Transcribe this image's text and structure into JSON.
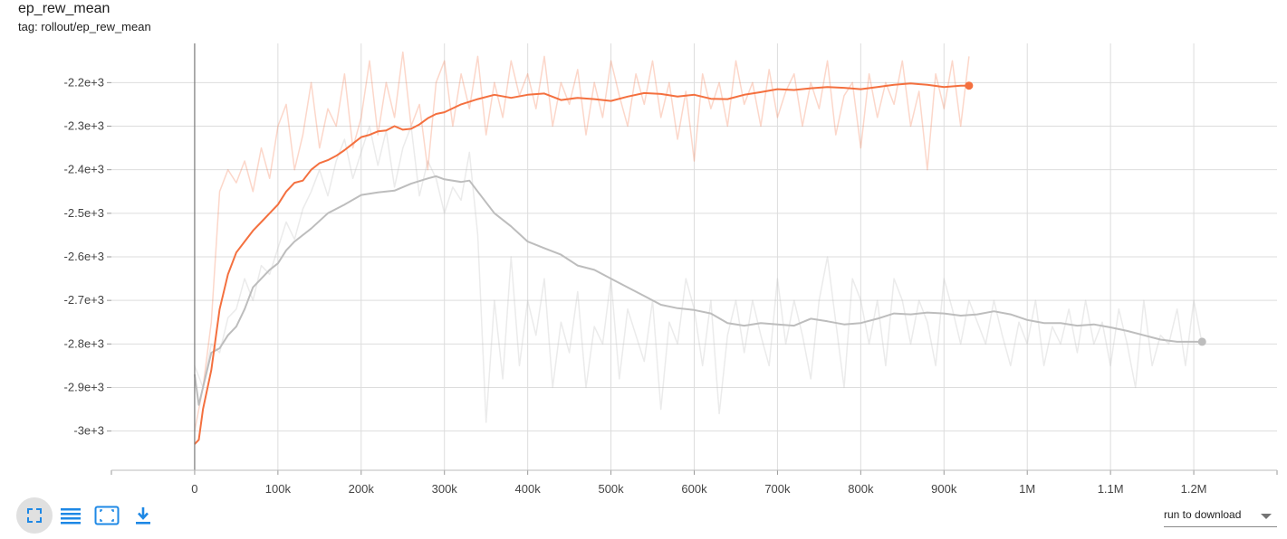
{
  "card": {
    "title": "ep_rew_mean",
    "tag": "tag: rollout/ep_rew_mean"
  },
  "toolbar": {
    "buttons": [
      "fullscreen-icon",
      "list-icon",
      "fit-domain-icon",
      "download-icon"
    ],
    "download_label": "run to download"
  },
  "colors": {
    "orange": "#f4703f",
    "gray": "#bdbdbd"
  },
  "chart_data": {
    "type": "line",
    "title": "ep_rew_mean",
    "xlabel": "",
    "ylabel": "",
    "xlim": [
      -100000,
      1300000
    ],
    "ylim": [
      -3090,
      -2110
    ],
    "grid": true,
    "x_ticks": [
      0,
      100000,
      200000,
      300000,
      400000,
      500000,
      600000,
      700000,
      800000,
      900000,
      1000000,
      1100000,
      1200000
    ],
    "x_tick_labels": [
      "0",
      "100k",
      "200k",
      "300k",
      "400k",
      "500k",
      "600k",
      "700k",
      "800k",
      "900k",
      "1M",
      "1.1M",
      "1.2M"
    ],
    "y_ticks": [
      -3000,
      -2900,
      -2800,
      -2700,
      -2600,
      -2500,
      -2400,
      -2300,
      -2200
    ],
    "y_tick_labels": [
      "-3e+3",
      "-2.9e+3",
      "-2.8e+3",
      "-2.7e+3",
      "-2.6e+3",
      "-2.5e+3",
      "-2.4e+3",
      "-2.3e+3",
      "-2.2e+3"
    ],
    "series": [
      {
        "color": "#bdbdbd",
        "end_marker": true,
        "smoothed": {
          "x": [
            0,
            5000,
            10000,
            20000,
            30000,
            40000,
            50000,
            60000,
            70000,
            80000,
            90000,
            100000,
            110000,
            120000,
            140000,
            160000,
            180000,
            200000,
            220000,
            240000,
            260000,
            280000,
            290000,
            300000,
            320000,
            330000,
            340000,
            360000,
            380000,
            400000,
            420000,
            440000,
            460000,
            480000,
            500000,
            520000,
            540000,
            560000,
            580000,
            600000,
            620000,
            640000,
            660000,
            680000,
            700000,
            720000,
            740000,
            760000,
            780000,
            800000,
            820000,
            840000,
            860000,
            880000,
            900000,
            920000,
            940000,
            960000,
            980000,
            1000000,
            1020000,
            1040000,
            1060000,
            1080000,
            1100000,
            1120000,
            1140000,
            1160000,
            1180000,
            1210000
          ],
          "y": [
            -2870,
            -2940,
            -2900,
            -2820,
            -2810,
            -2780,
            -2760,
            -2720,
            -2670,
            -2650,
            -2630,
            -2615,
            -2585,
            -2565,
            -2535,
            -2500,
            -2480,
            -2458,
            -2452,
            -2448,
            -2432,
            -2420,
            -2415,
            -2422,
            -2428,
            -2425,
            -2450,
            -2500,
            -2530,
            -2565,
            -2580,
            -2595,
            -2620,
            -2630,
            -2650,
            -2670,
            -2690,
            -2710,
            -2718,
            -2722,
            -2730,
            -2752,
            -2758,
            -2752,
            -2755,
            -2758,
            -2742,
            -2748,
            -2755,
            -2752,
            -2742,
            -2730,
            -2732,
            -2728,
            -2730,
            -2735,
            -2732,
            -2725,
            -2732,
            -2745,
            -2752,
            -2752,
            -2758,
            -2755,
            -2762,
            -2770,
            -2780,
            -2790,
            -2795,
            -2795
          ]
        },
        "raw": {
          "x": [
            0,
            10000,
            20000,
            30000,
            40000,
            50000,
            60000,
            70000,
            80000,
            90000,
            100000,
            110000,
            120000,
            130000,
            140000,
            150000,
            160000,
            170000,
            180000,
            190000,
            200000,
            210000,
            220000,
            230000,
            240000,
            250000,
            260000,
            270000,
            280000,
            290000,
            300000,
            310000,
            320000,
            330000,
            340000,
            350000,
            360000,
            370000,
            380000,
            390000,
            400000,
            410000,
            420000,
            430000,
            440000,
            450000,
            460000,
            470000,
            480000,
            490000,
            500000,
            510000,
            520000,
            530000,
            540000,
            550000,
            560000,
            570000,
            580000,
            590000,
            600000,
            610000,
            620000,
            630000,
            640000,
            650000,
            660000,
            670000,
            680000,
            690000,
            700000,
            710000,
            720000,
            730000,
            740000,
            750000,
            760000,
            770000,
            780000,
            790000,
            800000,
            810000,
            820000,
            830000,
            840000,
            850000,
            860000,
            870000,
            880000,
            890000,
            900000,
            910000,
            920000,
            930000,
            940000,
            950000,
            960000,
            970000,
            980000,
            990000,
            1000000,
            1010000,
            1020000,
            1030000,
            1040000,
            1050000,
            1060000,
            1070000,
            1080000,
            1090000,
            1100000,
            1110000,
            1120000,
            1130000,
            1140000,
            1150000,
            1160000,
            1170000,
            1180000,
            1190000,
            1200000,
            1210000
          ],
          "y": [
            -2850,
            -2900,
            -2800,
            -2820,
            -2740,
            -2720,
            -2650,
            -2700,
            -2620,
            -2640,
            -2580,
            -2520,
            -2560,
            -2490,
            -2450,
            -2400,
            -2460,
            -2380,
            -2330,
            -2420,
            -2360,
            -2300,
            -2390,
            -2310,
            -2440,
            -2350,
            -2300,
            -2460,
            -2380,
            -2420,
            -2500,
            -2440,
            -2470,
            -2360,
            -2550,
            -2980,
            -2700,
            -2880,
            -2600,
            -2850,
            -2700,
            -2780,
            -2650,
            -2900,
            -2750,
            -2820,
            -2680,
            -2900,
            -2760,
            -2800,
            -2650,
            -2880,
            -2720,
            -2780,
            -2840,
            -2700,
            -2950,
            -2750,
            -2800,
            -2650,
            -2720,
            -2850,
            -2700,
            -2960,
            -2780,
            -2700,
            -2820,
            -2700,
            -2780,
            -2850,
            -2650,
            -2800,
            -2700,
            -2780,
            -2880,
            -2700,
            -2600,
            -2750,
            -2900,
            -2650,
            -2700,
            -2800,
            -2700,
            -2850,
            -2650,
            -2700,
            -2800,
            -2700,
            -2750,
            -2850,
            -2650,
            -2720,
            -2800,
            -2700,
            -2750,
            -2800,
            -2700,
            -2780,
            -2850,
            -2750,
            -2800,
            -2700,
            -2850,
            -2760,
            -2800,
            -2720,
            -2820,
            -2700,
            -2800,
            -2750,
            -2850,
            -2720,
            -2800,
            -2900,
            -2700,
            -2850,
            -2780,
            -2800,
            -2720,
            -2850,
            -2700,
            -2800
          ]
        }
      },
      {
        "color": "#f4703f",
        "end_marker": true,
        "smoothed": {
          "x": [
            0,
            5000,
            10000,
            20000,
            30000,
            40000,
            50000,
            60000,
            70000,
            80000,
            90000,
            100000,
            110000,
            120000,
            130000,
            140000,
            150000,
            160000,
            170000,
            180000,
            190000,
            200000,
            210000,
            220000,
            230000,
            240000,
            250000,
            260000,
            270000,
            280000,
            290000,
            300000,
            320000,
            340000,
            360000,
            380000,
            400000,
            420000,
            440000,
            460000,
            480000,
            500000,
            520000,
            540000,
            560000,
            580000,
            600000,
            620000,
            640000,
            660000,
            680000,
            700000,
            720000,
            740000,
            760000,
            780000,
            800000,
            820000,
            840000,
            860000,
            880000,
            900000,
            920000,
            930000
          ],
          "y": [
            -3030,
            -3020,
            -2950,
            -2860,
            -2720,
            -2640,
            -2590,
            -2565,
            -2540,
            -2520,
            -2500,
            -2480,
            -2450,
            -2430,
            -2425,
            -2400,
            -2385,
            -2378,
            -2368,
            -2355,
            -2340,
            -2325,
            -2320,
            -2312,
            -2310,
            -2300,
            -2308,
            -2306,
            -2296,
            -2282,
            -2272,
            -2268,
            -2250,
            -2238,
            -2228,
            -2235,
            -2228,
            -2225,
            -2240,
            -2235,
            -2238,
            -2242,
            -2232,
            -2224,
            -2226,
            -2232,
            -2228,
            -2237,
            -2238,
            -2228,
            -2222,
            -2215,
            -2217,
            -2213,
            -2210,
            -2212,
            -2215,
            -2210,
            -2205,
            -2202,
            -2205,
            -2210,
            -2207,
            -2207
          ]
        },
        "raw": {
          "x": [
            0,
            10000,
            20000,
            30000,
            40000,
            50000,
            60000,
            70000,
            80000,
            90000,
            100000,
            110000,
            120000,
            130000,
            140000,
            150000,
            160000,
            170000,
            180000,
            190000,
            200000,
            210000,
            220000,
            230000,
            240000,
            250000,
            260000,
            270000,
            280000,
            290000,
            300000,
            310000,
            320000,
            330000,
            340000,
            350000,
            360000,
            370000,
            380000,
            390000,
            400000,
            410000,
            420000,
            430000,
            440000,
            450000,
            460000,
            470000,
            480000,
            490000,
            500000,
            510000,
            520000,
            530000,
            540000,
            550000,
            560000,
            570000,
            580000,
            590000,
            600000,
            610000,
            620000,
            630000,
            640000,
            650000,
            660000,
            670000,
            680000,
            690000,
            700000,
            710000,
            720000,
            730000,
            740000,
            750000,
            760000,
            770000,
            780000,
            790000,
            800000,
            810000,
            820000,
            830000,
            840000,
            850000,
            860000,
            870000,
            880000,
            890000,
            900000,
            910000,
            920000,
            930000
          ],
          "y": [
            -3000,
            -2900,
            -2750,
            -2450,
            -2400,
            -2430,
            -2380,
            -2450,
            -2350,
            -2420,
            -2300,
            -2250,
            -2400,
            -2320,
            -2200,
            -2350,
            -2260,
            -2300,
            -2180,
            -2350,
            -2280,
            -2150,
            -2320,
            -2200,
            -2280,
            -2130,
            -2300,
            -2250,
            -2400,
            -2200,
            -2150,
            -2300,
            -2180,
            -2260,
            -2140,
            -2320,
            -2200,
            -2280,
            -2150,
            -2230,
            -2180,
            -2260,
            -2140,
            -2300,
            -2200,
            -2250,
            -2170,
            -2320,
            -2200,
            -2280,
            -2150,
            -2230,
            -2300,
            -2180,
            -2250,
            -2150,
            -2280,
            -2200,
            -2330,
            -2220,
            -2380,
            -2180,
            -2260,
            -2200,
            -2300,
            -2150,
            -2250,
            -2200,
            -2300,
            -2170,
            -2280,
            -2220,
            -2180,
            -2300,
            -2200,
            -2260,
            -2150,
            -2320,
            -2230,
            -2200,
            -2350,
            -2180,
            -2280,
            -2200,
            -2250,
            -2150,
            -2300,
            -2220,
            -2400,
            -2180,
            -2260,
            -2150,
            -2300,
            -2140
          ]
        }
      }
    ]
  }
}
